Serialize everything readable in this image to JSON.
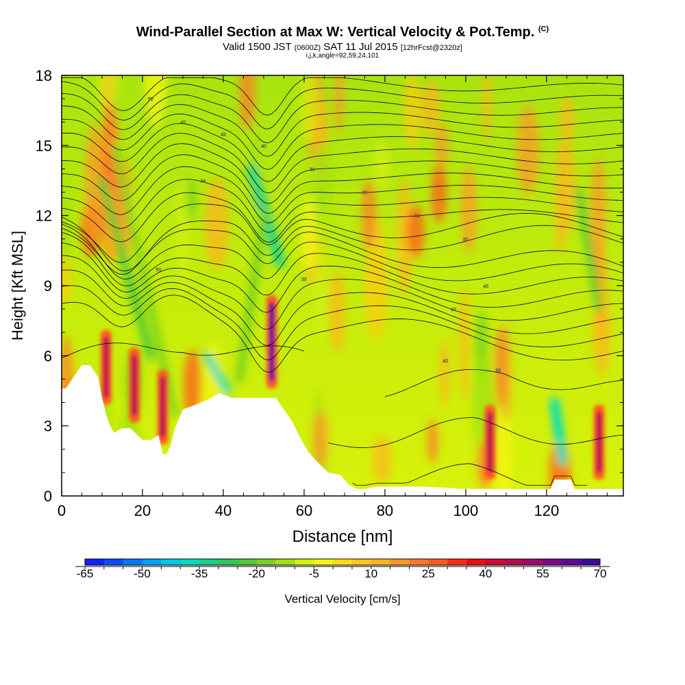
{
  "header": {
    "title": "Wind-Parallel Section at Max W: Vertical Velocity & Pot.Temp.",
    "title_mark": "(C)",
    "valid_prefix": "Valid 1500 JST",
    "valid_z": "(0600Z)",
    "valid_date": "SAT 11 Jul 2015",
    "valid_fcst": "[12hrFcst@2320z]",
    "params": "i,j,k,angle=92,59,24,101"
  },
  "chart_data": {
    "type": "heatmap",
    "xlabel": "Distance [nm]",
    "ylabel": "Height [Kft MSL]",
    "xlim": [
      0,
      139
    ],
    "ylim": [
      0,
      18
    ],
    "x_ticks": [
      "0",
      "20",
      "40",
      "60",
      "80",
      "100",
      "120"
    ],
    "y_ticks": [
      "0",
      "3",
      "6",
      "9",
      "12",
      "15",
      "18"
    ],
    "colorbar": {
      "label": "Vertical Velocity [cm/s]",
      "min": -65,
      "max": 70,
      "step": 5,
      "tick_labels": [
        "-65",
        "-50",
        "-35",
        "-20",
        "-5",
        "10",
        "25",
        "40",
        "55",
        "70"
      ],
      "colors": [
        "#1020ff",
        "#0a4cff",
        "#0078ff",
        "#00a0ff",
        "#00c8e6",
        "#00dcbe",
        "#14d28c",
        "#2cc85a",
        "#50c832",
        "#78d21e",
        "#a0e10f",
        "#d2f00a",
        "#f5f514",
        "#ffdc14",
        "#ffc814",
        "#ffb41e",
        "#ff9628",
        "#ff7828",
        "#ff5a1e",
        "#ff2d14",
        "#eb0f0f",
        "#cd0a32",
        "#b40a50",
        "#9b0a6e",
        "#7d0a87",
        "#5f0a96",
        "#3c0a9b"
      ]
    },
    "terrain_kft": [
      [
        0,
        4.6
      ],
      [
        1,
        4.6
      ],
      [
        3,
        5.1
      ],
      [
        5,
        5.6
      ],
      [
        7,
        5.6
      ],
      [
        9,
        5.1
      ],
      [
        10,
        4.2
      ],
      [
        11,
        3.5
      ],
      [
        12,
        3.0
      ],
      [
        13,
        2.7
      ],
      [
        15,
        2.9
      ],
      [
        17,
        2.9
      ],
      [
        20,
        2.4
      ],
      [
        22,
        2.4
      ],
      [
        24,
        2.6
      ],
      [
        25,
        1.8
      ],
      [
        26,
        1.8
      ],
      [
        27,
        2.2
      ],
      [
        28,
        2.9
      ],
      [
        30,
        3.7
      ],
      [
        33,
        3.9
      ],
      [
        36,
        4.1
      ],
      [
        39,
        4.4
      ],
      [
        42,
        4.2
      ],
      [
        46,
        4.2
      ],
      [
        50,
        4.2
      ],
      [
        53,
        4.2
      ],
      [
        55,
        3.7
      ],
      [
        57,
        3.2
      ],
      [
        59,
        2.5
      ],
      [
        61,
        1.9
      ],
      [
        63,
        1.5
      ],
      [
        66,
        1.0
      ],
      [
        69,
        0.9
      ],
      [
        71,
        0.5
      ],
      [
        73,
        0.3
      ],
      [
        75,
        0.3
      ],
      [
        78,
        0.4
      ],
      [
        80,
        0.4
      ],
      [
        90,
        0.4
      ],
      [
        100,
        0.3
      ],
      [
        110,
        0.3
      ],
      [
        121,
        0.3
      ],
      [
        122,
        0.7
      ],
      [
        126,
        0.7
      ],
      [
        127,
        0.3
      ],
      [
        139,
        0.3
      ]
    ],
    "updraft_columns_x": [
      11,
      18,
      25,
      52,
      106,
      133
    ],
    "contour_labels": [
      "50",
      "46",
      "42",
      "40",
      "38",
      "36",
      "34"
    ],
    "contour_label_color": "#ffffff"
  }
}
